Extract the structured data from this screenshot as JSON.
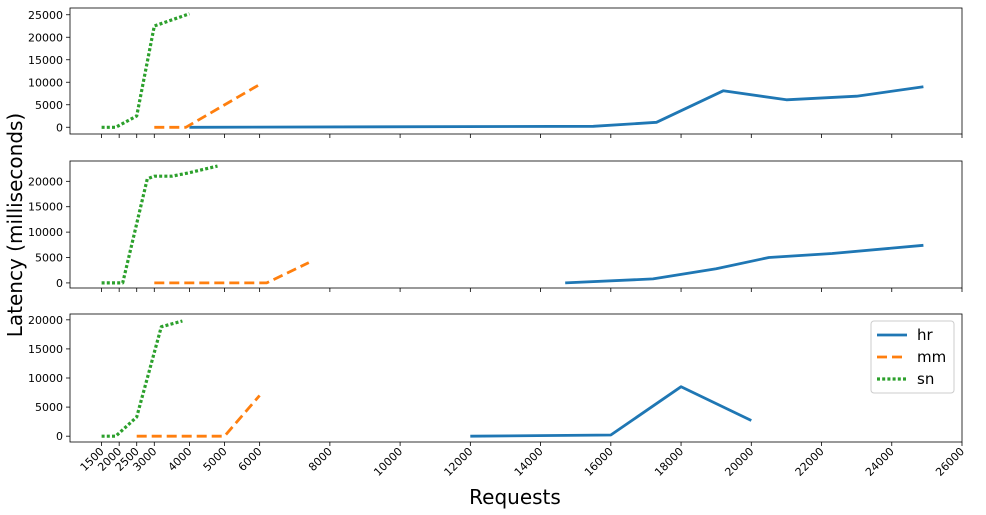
{
  "chart_data": {
    "type": "line",
    "xlabel": "Requests",
    "ylabel": "Latency (milliseconds)",
    "xlim": [
      600,
      26000
    ],
    "x_ticks": [
      1500,
      2000,
      2500,
      3000,
      4000,
      5000,
      6000,
      8000,
      10000,
      12000,
      14000,
      16000,
      18000,
      20000,
      22000,
      24000,
      26000
    ],
    "legend": {
      "placement": "upper-right",
      "panel": 3,
      "entries": [
        "hr",
        "mm",
        "sn"
      ]
    },
    "series_colors": {
      "hr": "#1f77b4",
      "mm": "#ff7f0e",
      "sn": "#2ca02c"
    },
    "series_styles": {
      "hr": "solid",
      "mm": "dashed",
      "sn": "dotted"
    },
    "panels": [
      {
        "ylim": [
          -1500,
          26500
        ],
        "y_ticks": [
          0,
          5000,
          10000,
          15000,
          20000,
          25000
        ],
        "series": [
          {
            "name": "hr",
            "x": [
              4000,
              15500,
              17300,
              19200,
              21000,
              23000,
              24900
            ],
            "y": [
              0,
              200,
              1100,
              8100,
              6100,
              6900,
              9000
            ]
          },
          {
            "name": "mm",
            "x": [
              3000,
              3900,
              6000
            ],
            "y": [
              0,
              0,
              9500
            ]
          },
          {
            "name": "sn",
            "x": [
              1500,
              1900,
              2500,
              3000,
              4000
            ],
            "y": [
              0,
              0,
              2500,
              22500,
              25200
            ]
          }
        ]
      },
      {
        "ylim": [
          -1000,
          24000
        ],
        "y_ticks": [
          0,
          5000,
          10000,
          15000,
          20000
        ],
        "series": [
          {
            "name": "hr",
            "x": [
              14700,
              17200,
              19000,
              20500,
              22300,
              24900
            ],
            "y": [
              0,
              800,
              2800,
              5000,
              5800,
              7400
            ]
          },
          {
            "name": "mm",
            "x": [
              3000,
              6200,
              7400
            ],
            "y": [
              0,
              0,
              4000
            ]
          },
          {
            "name": "sn",
            "x": [
              1500,
              2100,
              2800,
              3000,
              3500,
              4000,
              4800
            ],
            "y": [
              0,
              0,
              20500,
              21000,
              21000,
              21700,
              23000
            ]
          }
        ]
      },
      {
        "ylim": [
          -1000,
          21000
        ],
        "y_ticks": [
          0,
          5000,
          10000,
          15000,
          20000
        ],
        "series": [
          {
            "name": "hr",
            "x": [
              12000,
              16000,
              18000,
              20000
            ],
            "y": [
              0,
              200,
              8500,
              2700
            ]
          },
          {
            "name": "mm",
            "x": [
              2500,
              5000,
              6000
            ],
            "y": [
              0,
              0,
              7000
            ]
          },
          {
            "name": "sn",
            "x": [
              1500,
              1900,
              2500,
              3200,
              3800
            ],
            "y": [
              0,
              0,
              3300,
              18800,
              19800
            ]
          }
        ]
      }
    ]
  }
}
